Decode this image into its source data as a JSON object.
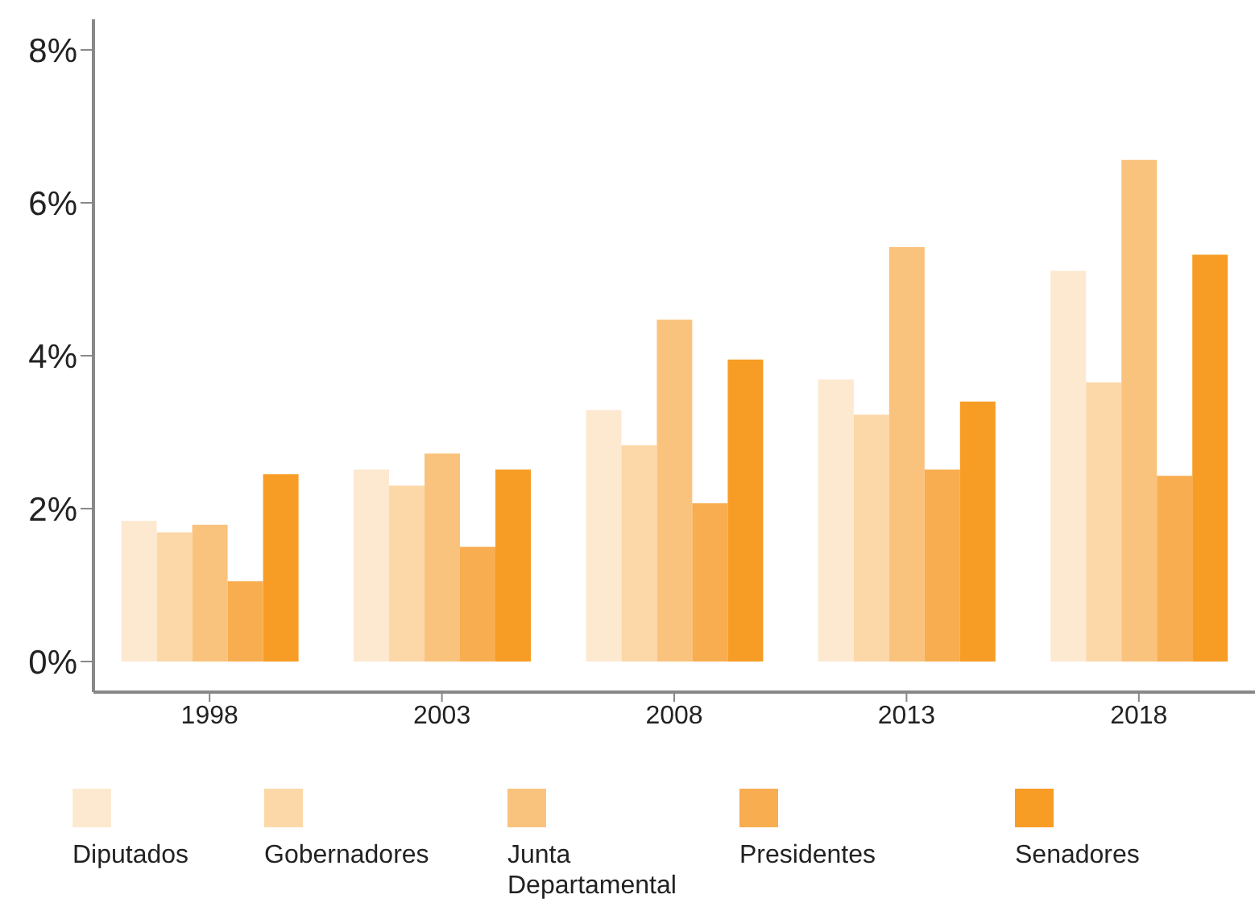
{
  "chart_data": {
    "type": "bar",
    "categories": [
      "1998",
      "2003",
      "2008",
      "2013",
      "2018"
    ],
    "series": [
      {
        "name": "Diputados",
        "color": "#fde9d0",
        "values": [
          1.84,
          2.51,
          3.29,
          3.69,
          5.11
        ]
      },
      {
        "name": "Gobernadores",
        "color": "#fcd8a8",
        "values": [
          1.69,
          2.3,
          2.83,
          3.23,
          3.65
        ]
      },
      {
        "name": "Junta Departamental",
        "color": "#fac37d",
        "values": [
          1.79,
          2.72,
          4.47,
          5.42,
          6.56
        ]
      },
      {
        "name": "Presidentes",
        "color": "#f8ad50",
        "values": [
          1.05,
          1.5,
          2.07,
          2.51,
          2.43
        ]
      },
      {
        "name": "Senadores",
        "color": "#f79d26",
        "values": [
          2.45,
          2.51,
          3.95,
          3.4,
          5.32
        ]
      }
    ],
    "ylim": [
      -0.4,
      8.4
    ],
    "yticks": [
      {
        "value": 0,
        "label": "0%"
      },
      {
        "value": 2,
        "label": "2%"
      },
      {
        "value": 4,
        "label": "4%"
      },
      {
        "value": 6,
        "label": "6%"
      },
      {
        "value": 8,
        "label": "8%"
      }
    ],
    "grid": false,
    "legend": "bottom"
  }
}
